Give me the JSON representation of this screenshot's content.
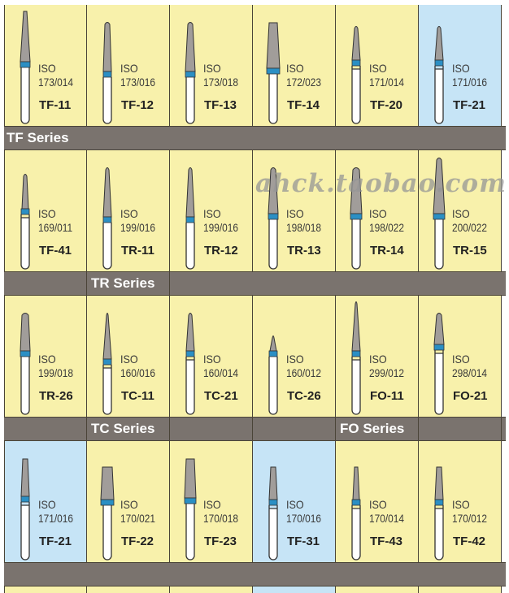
{
  "rows": [
    {
      "cells": [
        {
          "iso": "ISO",
          "number": "173/014",
          "code": "TF-11",
          "highlight": false
        },
        {
          "iso": "ISO",
          "number": "173/016",
          "code": "TF-12",
          "highlight": false
        },
        {
          "iso": "ISO",
          "number": "173/018",
          "code": "TF-13",
          "highlight": false
        },
        {
          "iso": "ISO",
          "number": "172/023",
          "code": "TF-14",
          "highlight": false
        },
        {
          "iso": "ISO",
          "number": "171/014",
          "code": "TF-20",
          "highlight": false
        },
        {
          "iso": "ISO",
          "number": "171/016",
          "code": "TF-21",
          "highlight": true
        }
      ]
    },
    {
      "cells": [
        {
          "iso": "ISO",
          "number": "169/011",
          "code": "TF-41",
          "highlight": false
        },
        {
          "iso": "ISO",
          "number": "199/016",
          "code": "TR-11",
          "highlight": false
        },
        {
          "iso": "ISO",
          "number": "199/016",
          "code": "TR-12",
          "highlight": false
        },
        {
          "iso": "ISO",
          "number": "198/018",
          "code": "TR-13",
          "highlight": false
        },
        {
          "iso": "ISO",
          "number": "198/022",
          "code": "TR-14",
          "highlight": false
        },
        {
          "iso": "ISO",
          "number": "200/022",
          "code": "TR-15",
          "highlight": false
        }
      ]
    },
    {
      "cells": [
        {
          "iso": "ISO",
          "number": "199/018",
          "code": "TR-26",
          "highlight": false
        },
        {
          "iso": "ISO",
          "number": "160/016",
          "code": "TC-11",
          "highlight": false
        },
        {
          "iso": "ISO",
          "number": "160/014",
          "code": "TC-21",
          "highlight": false
        },
        {
          "iso": "ISO",
          "number": "160/012",
          "code": "TC-26",
          "highlight": false
        },
        {
          "iso": "ISO",
          "number": "299/012",
          "code": "FO-11",
          "highlight": false
        },
        {
          "iso": "ISO",
          "number": "298/014",
          "code": "FO-21",
          "highlight": false
        }
      ]
    },
    {
      "cells": [
        {
          "iso": "ISO",
          "number": "171/016",
          "code": "TF-21",
          "highlight": true
        },
        {
          "iso": "ISO",
          "number": "170/021",
          "code": "TF-22",
          "highlight": false
        },
        {
          "iso": "ISO",
          "number": "170/018",
          "code": "TF-23",
          "highlight": false
        },
        {
          "iso": "ISO",
          "number": "170/016",
          "code": "TF-31",
          "highlight": true
        },
        {
          "iso": "ISO",
          "number": "170/014",
          "code": "TF-43",
          "highlight": false
        },
        {
          "iso": "ISO",
          "number": "170/012",
          "code": "TF-42",
          "highlight": false
        }
      ]
    }
  ],
  "bands": [
    [
      "TF Series",
      "",
      "",
      "",
      "",
      ""
    ],
    [
      "",
      "TR Series",
      "",
      "",
      "",
      ""
    ],
    [
      "",
      "TC Series",
      "",
      "",
      "FO Series",
      ""
    ],
    [
      "",
      "",
      "",
      "",
      "",
      ""
    ]
  ],
  "partial_row_highlight": [
    false,
    false,
    false,
    true,
    false,
    false
  ],
  "watermark": "ahck.taobao.com",
  "colors": {
    "cell": "#f8f1ab",
    "cell_highlight": "#c6e4f6",
    "band": "#7a736e",
    "bur_head": "#a19d9a",
    "bur_ring": "#2b8fc4"
  }
}
